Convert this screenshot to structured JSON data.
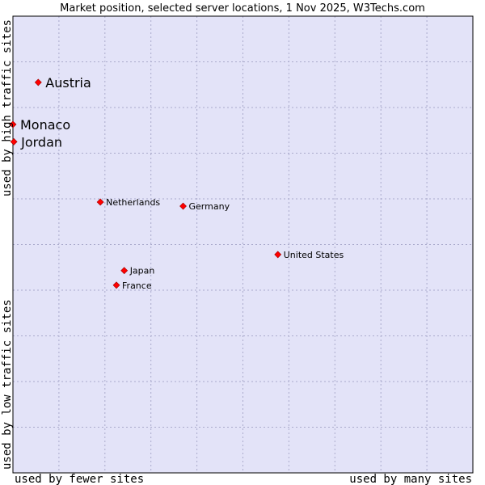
{
  "chart_data": {
    "type": "scatter",
    "title": "Market position, selected server locations, 1 Nov 2025, W3Techs.com",
    "xlabel_left": "used by fewer sites",
    "xlabel_right": "used by many sites",
    "ylabel_top": "used by high traffic sites",
    "ylabel_bottom": "used by low traffic sites",
    "xlim": [
      0,
      100
    ],
    "ylim": [
      0,
      100
    ],
    "grid": true,
    "colors": {
      "plot_background": "#e3e3f8",
      "grid": "#aaaacc",
      "frame": "#000000",
      "marker": "#ff0000",
      "marker_edge": "#990000"
    },
    "points": [
      {
        "label": "Austria",
        "x": 5.5,
        "y": 85.5,
        "emphasis": true
      },
      {
        "label": "Monaco",
        "x": 0.0,
        "y": 76.3,
        "emphasis": true
      },
      {
        "label": "Jordan",
        "x": 0.2,
        "y": 72.5,
        "emphasis": true
      },
      {
        "label": "Netherlands",
        "x": 19.0,
        "y": 59.3,
        "emphasis": false
      },
      {
        "label": "Germany",
        "x": 37.0,
        "y": 58.4,
        "emphasis": false
      },
      {
        "label": "United States",
        "x": 57.6,
        "y": 47.8,
        "emphasis": false
      },
      {
        "label": "Japan",
        "x": 24.2,
        "y": 44.3,
        "emphasis": false
      },
      {
        "label": "France",
        "x": 22.5,
        "y": 41.1,
        "emphasis": false
      }
    ]
  }
}
